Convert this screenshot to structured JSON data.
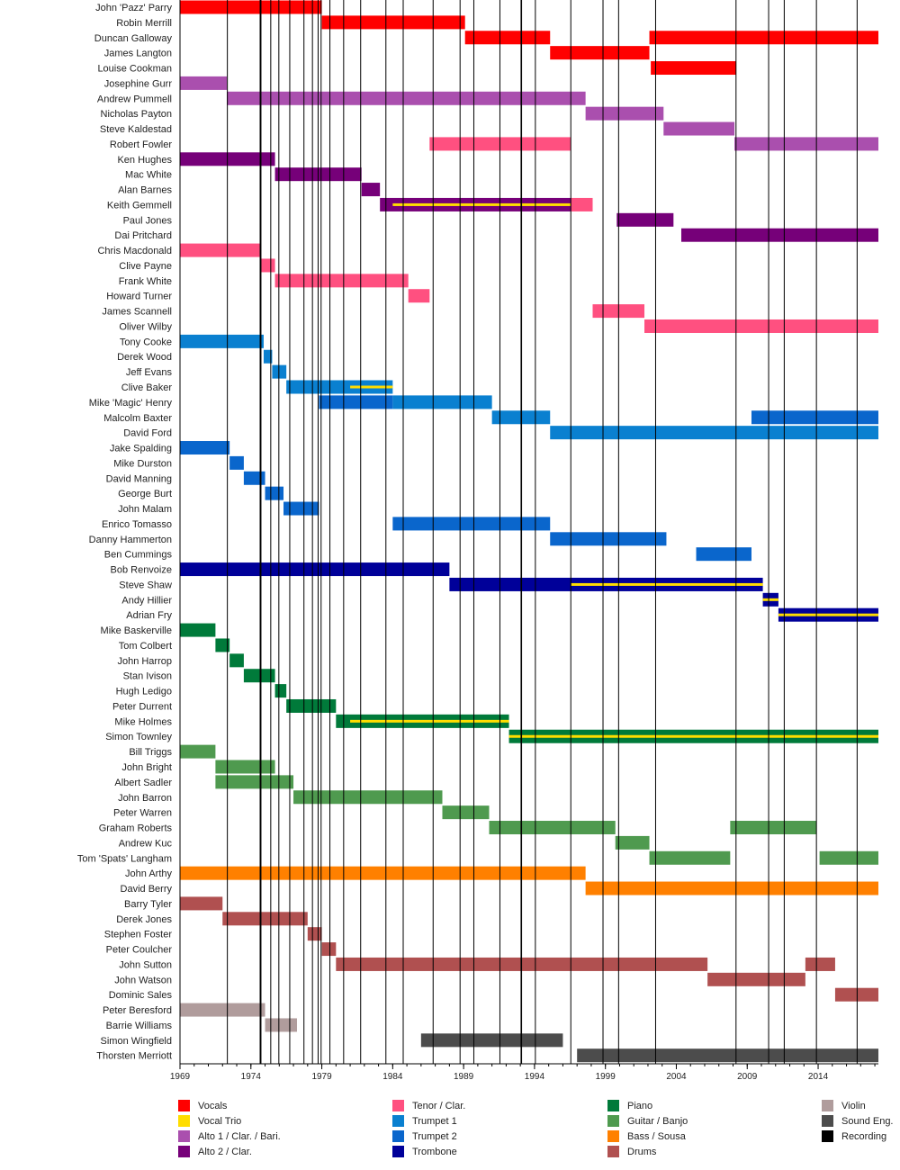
{
  "chart_data": {
    "type": "timeline",
    "xlim": [
      1969,
      2018.25
    ],
    "x_ticks": [
      "1969",
      "1974",
      "1979",
      "1984",
      "1989",
      "1994",
      "1999",
      "2004",
      "2009",
      "2014"
    ],
    "roles": [
      {
        "key": "vocals",
        "label": "Vocals",
        "color": "#ff0000"
      },
      {
        "key": "trio",
        "label": "Vocal Trio",
        "color": "#ffdd00"
      },
      {
        "key": "alto1",
        "label": "Alto 1 / Clar. / Bari.",
        "color": "#aa4fae"
      },
      {
        "key": "alto2",
        "label": "Alto 2 / Clar.",
        "color": "#760079"
      },
      {
        "key": "tenor",
        "label": "Tenor / Clar.",
        "color": "#ff5080"
      },
      {
        "key": "trumpet1",
        "label": "Trumpet 1",
        "color": "#0a80d0"
      },
      {
        "key": "trumpet2",
        "label": "Trumpet 2",
        "color": "#0a66cc"
      },
      {
        "key": "trombone",
        "label": "Trombone",
        "color": "#000099"
      },
      {
        "key": "piano",
        "label": "Piano",
        "color": "#007a3a"
      },
      {
        "key": "guitar",
        "label": "Guitar / Banjo",
        "color": "#4f9a4f"
      },
      {
        "key": "bass",
        "label": "Bass / Sousa",
        "color": "#ff8000"
      },
      {
        "key": "drums",
        "label": "Drums",
        "color": "#b05050"
      },
      {
        "key": "violin",
        "label": "Violin",
        "color": "#b09c9c"
      },
      {
        "key": "sound",
        "label": "Sound Eng.",
        "color": "#4c4c4c"
      },
      {
        "key": "recording",
        "label": "Recording",
        "color": "#000000"
      }
    ],
    "recordings": [
      1972.34,
      1974.65,
      1974.71,
      1975.4,
      1975.97,
      1976.74,
      1977.74,
      1978.34,
      1978.74,
      1978.95,
      1979.57,
      1980.54,
      1981.74,
      1983.52,
      1984.74,
      1986.85,
      1988.75,
      1989.72,
      1991.56,
      1993.05,
      1993.09,
      1994.06,
      1996.56,
      1998.83,
      1999.93,
      2002.54,
      2008.21,
      2010.51,
      2011.61,
      2013.88,
      2016.75
    ],
    "members": [
      {
        "name": "John 'Pazz' Parry",
        "seg": [
          [
            "vocals",
            1969,
            1979.0
          ]
        ]
      },
      {
        "name": "Robin Merrill",
        "seg": [
          [
            "vocals",
            1979.0,
            1989.1
          ]
        ]
      },
      {
        "name": "Duncan Galloway",
        "seg": [
          [
            "vocals",
            1989.1,
            1995.1
          ],
          [
            "vocals",
            2002.1,
            2018.25
          ]
        ]
      },
      {
        "name": "James Langton",
        "seg": [
          [
            "vocals",
            1995.1,
            2002.1
          ]
        ]
      },
      {
        "name": "Louise Cookman",
        "seg": [
          [
            "vocals",
            2002.2,
            2008.2
          ]
        ]
      },
      {
        "name": "Josephine Gurr",
        "seg": [
          [
            "alto1",
            1969,
            1972.3
          ]
        ]
      },
      {
        "name": "Andrew Pummell",
        "seg": [
          [
            "alto1",
            1972.3,
            1997.6
          ]
        ]
      },
      {
        "name": "Nicholas Payton",
        "seg": [
          [
            "alto1",
            1997.6,
            2003.1
          ]
        ]
      },
      {
        "name": "Steve Kaldestad",
        "seg": [
          [
            "alto1",
            2003.1,
            2008.1
          ]
        ]
      },
      {
        "name": "Robert Fowler",
        "seg": [
          [
            "tenor",
            1986.6,
            1996.55
          ],
          [
            "alto1",
            2008.1,
            2018.25
          ]
        ]
      },
      {
        "name": "Ken Hughes",
        "seg": [
          [
            "alto2",
            1969,
            1975.7
          ]
        ]
      },
      {
        "name": "Mac White",
        "seg": [
          [
            "alto2",
            1975.7,
            1981.8
          ]
        ]
      },
      {
        "name": "Alan Barnes",
        "seg": [
          [
            "alto2",
            1981.8,
            1983.1
          ]
        ]
      },
      {
        "name": "Keith Gemmell",
        "seg": [
          [
            "alto2",
            1983.1,
            1996.55
          ],
          [
            "tenor",
            1996.55,
            1998.1
          ]
        ],
        "trio": [
          [
            1984.0,
            1996.55
          ]
        ]
      },
      {
        "name": "Paul Jones",
        "seg": [
          [
            "alto2",
            1999.8,
            2003.8
          ]
        ]
      },
      {
        "name": "Dai Pritchard",
        "seg": [
          [
            "alto2",
            2004.35,
            2018.25
          ]
        ]
      },
      {
        "name": "Chris Macdonald",
        "seg": [
          [
            "tenor",
            1969,
            1974.65
          ]
        ]
      },
      {
        "name": "Clive Payne",
        "seg": [
          [
            "tenor",
            1974.65,
            1975.7
          ]
        ]
      },
      {
        "name": "Frank White",
        "seg": [
          [
            "tenor",
            1975.7,
            1985.1
          ]
        ]
      },
      {
        "name": "Howard Turner",
        "seg": [
          [
            "tenor",
            1985.1,
            1986.6
          ]
        ]
      },
      {
        "name": "James Scannell",
        "seg": [
          [
            "tenor",
            1998.1,
            2001.75
          ]
        ]
      },
      {
        "name": "Oliver Wilby",
        "seg": [
          [
            "tenor",
            2001.75,
            2018.25
          ]
        ]
      },
      {
        "name": "Tony Cooke",
        "seg": [
          [
            "trumpet1",
            1969,
            1974.9
          ]
        ]
      },
      {
        "name": "Derek Wood",
        "seg": [
          [
            "trumpet1",
            1974.9,
            1975.5
          ]
        ]
      },
      {
        "name": "Jeff Evans",
        "seg": [
          [
            "trumpet1",
            1975.5,
            1976.5
          ]
        ]
      },
      {
        "name": "Clive Baker",
        "seg": [
          [
            "trumpet1",
            1976.5,
            1984.0
          ]
        ],
        "trio": [
          [
            1981.0,
            1984.0
          ]
        ]
      },
      {
        "name": "Mike 'Magic' Henry",
        "seg": [
          [
            "trumpet2",
            1978.8,
            1984.0
          ],
          [
            "trumpet1",
            1984.0,
            1991.0
          ]
        ]
      },
      {
        "name": "Malcolm Baxter",
        "seg": [
          [
            "trumpet1",
            1991.0,
            1995.1
          ],
          [
            "trumpet2",
            2009.3,
            2018.25
          ]
        ]
      },
      {
        "name": "David Ford",
        "seg": [
          [
            "trumpet1",
            1995.1,
            2018.25
          ]
        ]
      },
      {
        "name": "Jake Spalding",
        "seg": [
          [
            "trumpet2",
            1969,
            1972.5
          ]
        ]
      },
      {
        "name": "Mike Durston",
        "seg": [
          [
            "trumpet2",
            1972.5,
            1973.5
          ]
        ]
      },
      {
        "name": "David Manning",
        "seg": [
          [
            "trumpet2",
            1973.5,
            1975.0
          ]
        ]
      },
      {
        "name": "George Burt",
        "seg": [
          [
            "trumpet2",
            1975.0,
            1976.3
          ]
        ]
      },
      {
        "name": "John Malam",
        "seg": [
          [
            "trumpet2",
            1976.3,
            1978.8
          ]
        ]
      },
      {
        "name": "Enrico Tomasso",
        "seg": [
          [
            "trumpet2",
            1984.0,
            1995.1
          ]
        ]
      },
      {
        "name": "Danny Hammerton",
        "seg": [
          [
            "trumpet2",
            1995.1,
            2003.3
          ]
        ]
      },
      {
        "name": "Ben Cummings",
        "seg": [
          [
            "trumpet2",
            2005.4,
            2009.3
          ]
        ]
      },
      {
        "name": "Bob Renvoize",
        "seg": [
          [
            "trombone",
            1969,
            1988.0
          ]
        ]
      },
      {
        "name": "Steve Shaw",
        "seg": [
          [
            "trombone",
            1988.0,
            2010.1
          ]
        ],
        "trio": [
          [
            1996.55,
            2010.1
          ]
        ]
      },
      {
        "name": "Andy Hillier",
        "seg": [
          [
            "trombone",
            2010.1,
            2011.2
          ]
        ],
        "trio": [
          [
            2010.1,
            2011.2
          ]
        ]
      },
      {
        "name": "Adrian Fry",
        "seg": [
          [
            "trombone",
            2011.2,
            2018.25
          ]
        ],
        "trio": [
          [
            2011.2,
            2018.25
          ]
        ]
      },
      {
        "name": "Mike Baskerville",
        "seg": [
          [
            "piano",
            1969,
            1971.5
          ]
        ]
      },
      {
        "name": "Tom Colbert",
        "seg": [
          [
            "piano",
            1971.5,
            1972.5
          ]
        ]
      },
      {
        "name": "John Harrop",
        "seg": [
          [
            "piano",
            1972.5,
            1973.5
          ]
        ]
      },
      {
        "name": "Stan Ivison",
        "seg": [
          [
            "piano",
            1973.5,
            1975.7
          ]
        ]
      },
      {
        "name": "Hugh Ledigo",
        "seg": [
          [
            "piano",
            1975.7,
            1976.5
          ]
        ]
      },
      {
        "name": "Peter Durrent",
        "seg": [
          [
            "piano",
            1976.5,
            1980.0
          ]
        ]
      },
      {
        "name": "Mike Holmes",
        "seg": [
          [
            "piano",
            1980.0,
            1992.2
          ]
        ],
        "trio": [
          [
            1981.0,
            1992.2
          ]
        ]
      },
      {
        "name": "Simon Townley",
        "seg": [
          [
            "piano",
            1992.2,
            2018.25
          ]
        ],
        "trio": [
          [
            1992.2,
            2018.25
          ]
        ]
      },
      {
        "name": "Bill Triggs",
        "seg": [
          [
            "guitar",
            1969,
            1971.5
          ]
        ]
      },
      {
        "name": "John Bright",
        "seg": [
          [
            "guitar",
            1971.5,
            1975.7
          ]
        ]
      },
      {
        "name": "Albert Sadler",
        "seg": [
          [
            "guitar",
            1971.5,
            1977.0
          ]
        ]
      },
      {
        "name": "John Barron",
        "seg": [
          [
            "guitar",
            1977.0,
            1987.5
          ]
        ]
      },
      {
        "name": "Peter Warren",
        "seg": [
          [
            "guitar",
            1987.5,
            1990.8
          ]
        ]
      },
      {
        "name": "Graham Roberts",
        "seg": [
          [
            "guitar",
            1990.8,
            1999.7
          ],
          [
            "guitar",
            2007.8,
            2013.9
          ]
        ]
      },
      {
        "name": "Andrew Kuc",
        "seg": [
          [
            "guitar",
            1999.7,
            2002.1
          ]
        ]
      },
      {
        "name": "Tom 'Spats' Langham",
        "seg": [
          [
            "guitar",
            2002.1,
            2007.8
          ],
          [
            "guitar",
            2014.1,
            2018.25
          ]
        ]
      },
      {
        "name": "John Arthy",
        "seg": [
          [
            "bass",
            1969,
            1997.6
          ]
        ]
      },
      {
        "name": "David Berry",
        "seg": [
          [
            "bass",
            1997.6,
            2018.25
          ]
        ]
      },
      {
        "name": "Barry Tyler",
        "seg": [
          [
            "drums",
            1969,
            1972.0
          ]
        ]
      },
      {
        "name": "Derek Jones",
        "seg": [
          [
            "drums",
            1972.0,
            1978.0
          ]
        ]
      },
      {
        "name": "Stephen Foster",
        "seg": [
          [
            "drums",
            1978.0,
            1979.0
          ]
        ]
      },
      {
        "name": "Peter Coulcher",
        "seg": [
          [
            "drums",
            1979.0,
            1980.0
          ]
        ]
      },
      {
        "name": "John Sutton",
        "seg": [
          [
            "drums",
            1980.0,
            2006.2
          ],
          [
            "drums",
            2013.1,
            2015.2
          ]
        ]
      },
      {
        "name": "John Watson",
        "seg": [
          [
            "drums",
            2006.2,
            2013.1
          ]
        ]
      },
      {
        "name": "Dominic Sales",
        "seg": [
          [
            "drums",
            2015.2,
            2018.25
          ]
        ]
      },
      {
        "name": "Peter Beresford",
        "seg": [
          [
            "violin",
            1969,
            1975.0
          ]
        ]
      },
      {
        "name": "Barrie Williams",
        "seg": [
          [
            "violin",
            1975.0,
            1977.25
          ]
        ]
      },
      {
        "name": "Simon Wingfield",
        "seg": [
          [
            "sound",
            1986.0,
            1996.0
          ]
        ]
      },
      {
        "name": "Thorsten Merriott",
        "seg": [
          [
            "sound",
            1997.0,
            2018.25
          ]
        ]
      }
    ]
  }
}
